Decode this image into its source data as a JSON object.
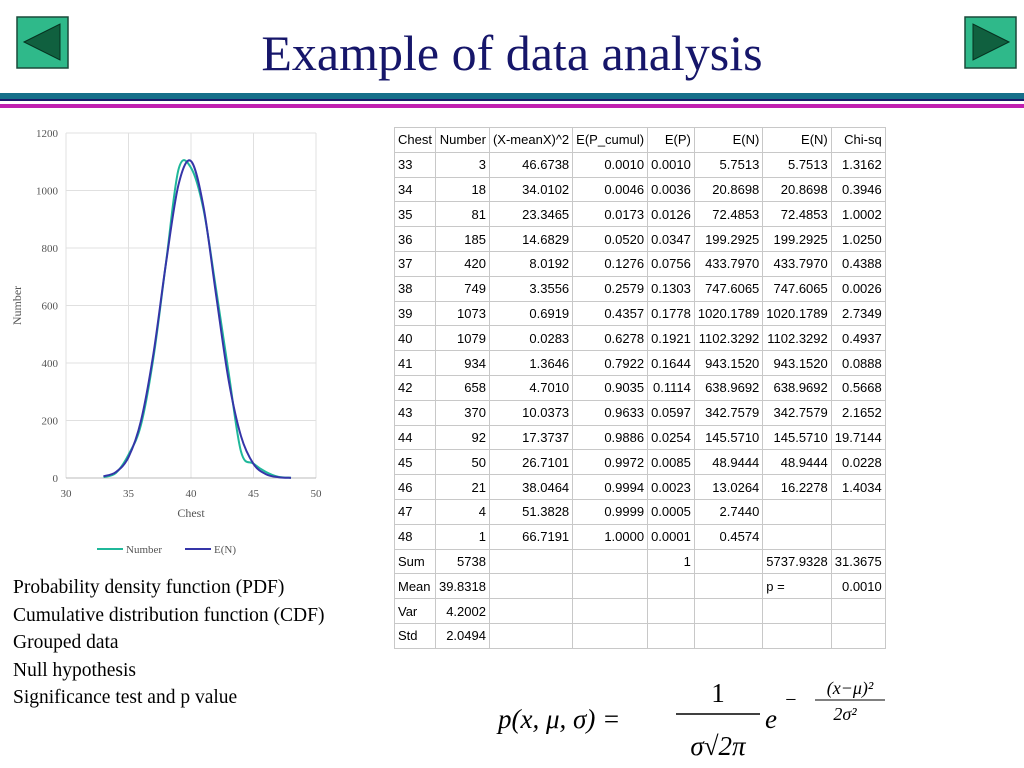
{
  "title": "Example of data analysis",
  "chart_data": {
    "type": "line",
    "x_label": "Chest",
    "y_label": "Number",
    "x": [
      33,
      34,
      35,
      36,
      37,
      38,
      39,
      40,
      41,
      42,
      43,
      44,
      45,
      46,
      47,
      48
    ],
    "series": [
      {
        "name": "Number",
        "color": "#1fb89a",
        "values": [
          3,
          18,
          81,
          185,
          420,
          749,
          1073,
          1079,
          934,
          658,
          370,
          92,
          50,
          21,
          4,
          1
        ]
      },
      {
        "name": "E(N)",
        "color": "#3535a8",
        "values": [
          5.7513,
          20.8698,
          72.4853,
          199.2925,
          433.797,
          747.6065,
          1020.1789,
          1102.3292,
          943.152,
          638.9692,
          342.7579,
          145.571,
          48.9444,
          13.0264,
          2.744,
          0.4574
        ]
      }
    ],
    "xlim": [
      30,
      50
    ],
    "xticks": [
      30,
      35,
      40,
      45,
      50
    ],
    "ylim": [
      0,
      1200
    ],
    "yticks": [
      0,
      200,
      400,
      600,
      800,
      1000,
      1200
    ],
    "grid": true,
    "legend": "bottom"
  },
  "table": {
    "header": [
      "Chest",
      "Number",
      "(X-meanX)^2",
      "E(P_cumul)",
      "E(P)",
      "E(N)",
      "E(N)",
      "Chi-sq"
    ],
    "rows": [
      [
        "33",
        "3",
        "46.6738",
        "0.0010",
        "0.0010",
        "5.7513",
        "5.7513",
        "1.3162"
      ],
      [
        "34",
        "18",
        "34.0102",
        "0.0046",
        "0.0036",
        "20.8698",
        "20.8698",
        "0.3946"
      ],
      [
        "35",
        "81",
        "23.3465",
        "0.0173",
        "0.0126",
        "72.4853",
        "72.4853",
        "1.0002"
      ],
      [
        "36",
        "185",
        "14.6829",
        "0.0520",
        "0.0347",
        "199.2925",
        "199.2925",
        "1.0250"
      ],
      [
        "37",
        "420",
        "8.0192",
        "0.1276",
        "0.0756",
        "433.7970",
        "433.7970",
        "0.4388"
      ],
      [
        "38",
        "749",
        "3.3556",
        "0.2579",
        "0.1303",
        "747.6065",
        "747.6065",
        "0.0026"
      ],
      [
        "39",
        "1073",
        "0.6919",
        "0.4357",
        "0.1778",
        "1020.1789",
        "1020.1789",
        "2.7349"
      ],
      [
        "40",
        "1079",
        "0.0283",
        "0.6278",
        "0.1921",
        "1102.3292",
        "1102.3292",
        "0.4937"
      ],
      [
        "41",
        "934",
        "1.3646",
        "0.7922",
        "0.1644",
        "943.1520",
        "943.1520",
        "0.0888"
      ],
      [
        "42",
        "658",
        "4.7010",
        "0.9035",
        "0.1114",
        "638.9692",
        "638.9692",
        "0.5668"
      ],
      [
        "43",
        "370",
        "10.0373",
        "0.9633",
        "0.0597",
        "342.7579",
        "342.7579",
        "2.1652"
      ],
      [
        "44",
        "92",
        "17.3737",
        "0.9886",
        "0.0254",
        "145.5710",
        "145.5710",
        "19.7144"
      ],
      [
        "45",
        "50",
        "26.7101",
        "0.9972",
        "0.0085",
        "48.9444",
        "48.9444",
        "0.0228"
      ],
      [
        "46",
        "21",
        "38.0464",
        "0.9994",
        "0.0023",
        "13.0264",
        "16.2278",
        "1.4034"
      ],
      [
        "47",
        "4",
        "51.3828",
        "0.9999",
        "0.0005",
        "2.7440",
        null,
        null
      ],
      [
        "48",
        "1",
        "66.7191",
        "1.0000",
        "0.0001",
        "0.4574",
        null,
        null
      ],
      [
        "Sum",
        "5738",
        null,
        null,
        "1",
        null,
        "5737.9328",
        "31.3675"
      ],
      [
        "Mean",
        "39.8318",
        null,
        null,
        null,
        null,
        "p =",
        "0.0010"
      ],
      [
        "Var",
        "4.2002",
        null,
        null,
        null,
        null,
        null,
        null
      ],
      [
        "Std",
        "2.0494",
        null,
        null,
        null,
        null,
        null,
        null
      ]
    ]
  },
  "topics": [
    "Probability density function (PDF)",
    "Cumulative distribution function (CDF)",
    "Grouped data",
    "Null hypothesis",
    "Significance test and p value"
  ],
  "formula": {
    "lhs": "p(x, μ, σ) =",
    "numerator": "1",
    "denominator": "σ√2π",
    "base": "e",
    "exponent_sign": "−",
    "exponent_numerator": "(x−μ)²",
    "exponent_denominator": "2σ²"
  }
}
